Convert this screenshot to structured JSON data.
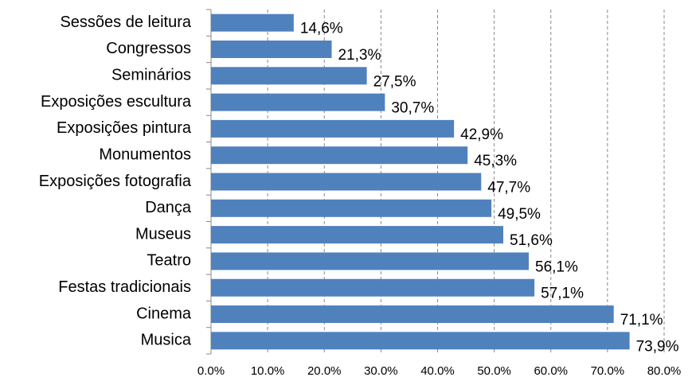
{
  "chart_data": {
    "type": "barh",
    "categories": [
      "Sessões de leitura",
      "Congressos",
      "Seminários",
      "Exposições escultura",
      "Exposições pintura",
      "Monumentos",
      "Exposições fotografia",
      "Dança",
      "Museus",
      "Teatro",
      "Festas tradicionais",
      "Cinema",
      "Musica"
    ],
    "values": [
      14.6,
      21.3,
      27.5,
      30.7,
      42.9,
      45.3,
      47.7,
      49.5,
      51.6,
      56.1,
      57.1,
      71.1,
      73.9
    ],
    "value_labels": [
      "14,6%",
      "21,3%",
      "27,5%",
      "30,7%",
      "42,9%",
      "45,3%",
      "47,7%",
      "49,5%",
      "51,6%",
      "56,1%",
      "57,1%",
      "71,1%",
      "73,9%"
    ],
    "color": "#4f81bd",
    "xlim": [
      0,
      80
    ],
    "xticks": [
      {
        "value": 0,
        "label": "0.0%"
      },
      {
        "value": 10,
        "label": "10.0%"
      },
      {
        "value": 20,
        "label": "20.0%"
      },
      {
        "value": 30,
        "label": "30.0%"
      },
      {
        "value": 40,
        "label": "40.0%"
      },
      {
        "value": 50,
        "label": "50.0%"
      },
      {
        "value": 60,
        "label": "60.0%"
      },
      {
        "value": 70,
        "label": "70.0%"
      },
      {
        "value": 80,
        "label": "80.0%"
      }
    ],
    "grid": true
  }
}
